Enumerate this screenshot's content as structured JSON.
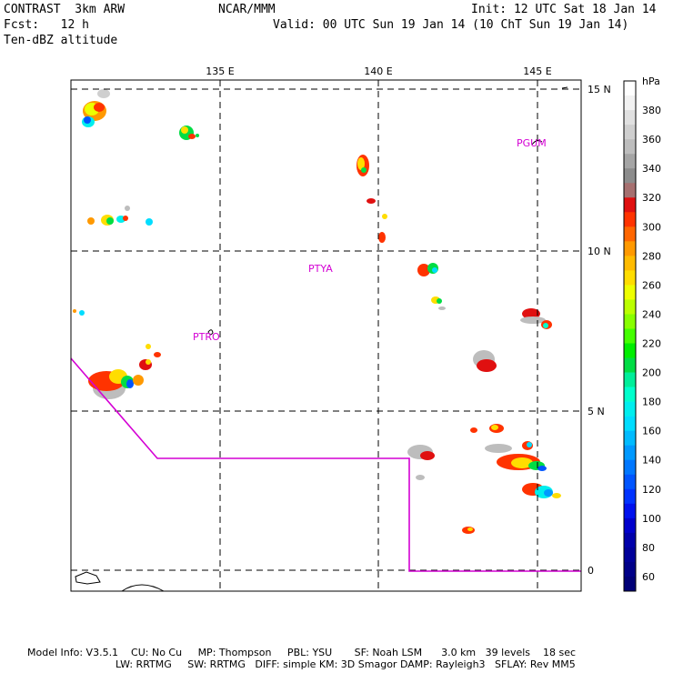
{
  "header": {
    "model": "CONTRAST  3km ARW",
    "org": "NCAR/MMM",
    "init": "Init: 12 UTC Sat 18 Jan 14",
    "fcst": "Fcst:   12 h",
    "valid": "Valid: 00 UTC Sun 19 Jan 14 (10 ChT Sun 19 Jan 14)",
    "field": "Ten-dBZ altitude"
  },
  "map": {
    "lon_labels": [
      "135 E",
      "140 E",
      "145 E"
    ],
    "lat_labels": [
      "15 N",
      "10 N",
      "5 N",
      "0"
    ],
    "stations": [
      "PGUM",
      "PTYA",
      "PTRO"
    ],
    "boundary_color": "#d400d4"
  },
  "colorbar": {
    "unit": "hPa",
    "levels": [
      {
        "value": "",
        "color": "#ffffff"
      },
      {
        "value": "380",
        "color": "#f2f2f2"
      },
      {
        "value": "",
        "color": "#e0e0e0"
      },
      {
        "value": "360",
        "color": "#cfcfcf"
      },
      {
        "value": "",
        "color": "#bdbdbd"
      },
      {
        "value": "340",
        "color": "#a5a5a5"
      },
      {
        "value": "",
        "color": "#8c8c8c"
      },
      {
        "value": "320",
        "color": "#a67070"
      },
      {
        "value": "",
        "color": "#e01010"
      },
      {
        "value": "300",
        "color": "#ff3300"
      },
      {
        "value": "",
        "color": "#ff6600"
      },
      {
        "value": "280",
        "color": "#ff9900"
      },
      {
        "value": "",
        "color": "#ffbb00"
      },
      {
        "value": "260",
        "color": "#ffdd00"
      },
      {
        "value": "",
        "color": "#eeff00"
      },
      {
        "value": "240",
        "color": "#bbff00"
      },
      {
        "value": "",
        "color": "#88ff00"
      },
      {
        "value": "220",
        "color": "#44ff00"
      },
      {
        "value": "",
        "color": "#00ee00"
      },
      {
        "value": "200",
        "color": "#00dd44"
      },
      {
        "value": "",
        "color": "#00ee99"
      },
      {
        "value": "180",
        "color": "#00ffcc"
      },
      {
        "value": "",
        "color": "#00eeee"
      },
      {
        "value": "160",
        "color": "#00ddff"
      },
      {
        "value": "",
        "color": "#00bbff"
      },
      {
        "value": "140",
        "color": "#0099ff"
      },
      {
        "value": "",
        "color": "#0077ff"
      },
      {
        "value": "120",
        "color": "#0055ff"
      },
      {
        "value": "",
        "color": "#0033ff"
      },
      {
        "value": "100",
        "color": "#0011ee"
      },
      {
        "value": "",
        "color": "#0000cc"
      },
      {
        "value": "80",
        "color": "#0000aa"
      },
      {
        "value": "",
        "color": "#000099"
      },
      {
        "value": "60",
        "color": "#000088"
      },
      {
        "value": "",
        "color": "#000077"
      }
    ]
  },
  "footer": {
    "line1": "Model Info: V3.5.1    CU: No Cu     MP: Thompson     PBL: YSU       SF: Noah LSM      3.0 km   39 levels    18 sec",
    "line2": "LW: RRTMG     SW: RRTMG   DIFF: simple KM: 3D Smagor DAMP: Rayleigh3   SFLAY: Rev MM5"
  }
}
